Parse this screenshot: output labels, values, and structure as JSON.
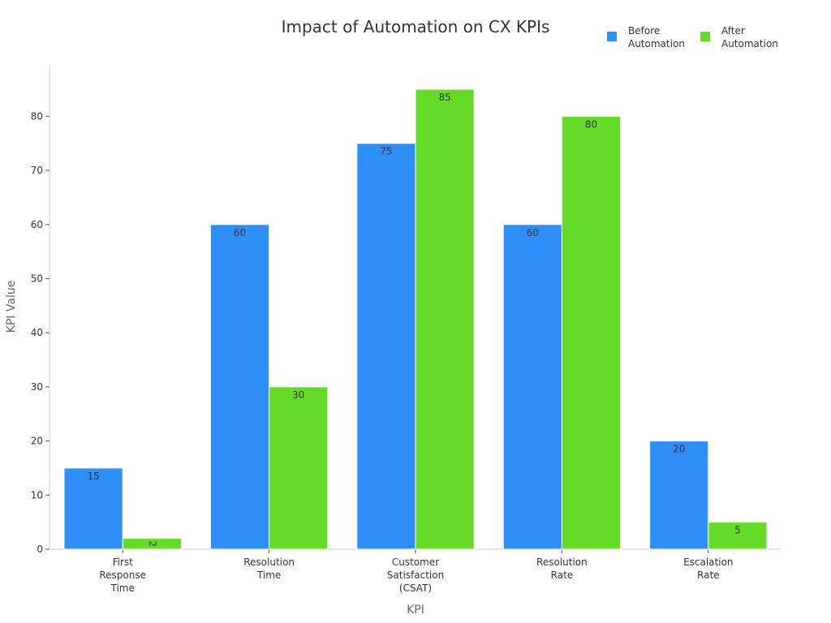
{
  "chart_data": {
    "type": "bar",
    "title": "Impact of Automation on CX KPIs",
    "xlabel": "KPI",
    "ylabel": "KPI Value",
    "categories": [
      [
        "First",
        "Response",
        "Time"
      ],
      [
        "Resolution",
        "Time"
      ],
      [
        "Customer",
        "Satisfaction",
        "(CSAT)"
      ],
      [
        "Resolution",
        "Rate"
      ],
      [
        "Escalation",
        "Rate"
      ]
    ],
    "series": [
      {
        "name": "Before Automation",
        "legend_lines": [
          "Before",
          "Automation"
        ],
        "color": "#2f8ff8",
        "values": [
          15,
          60,
          75,
          60,
          20
        ]
      },
      {
        "name": "After Automation",
        "legend_lines": [
          "After",
          "Automation"
        ],
        "color": "#66db27",
        "values": [
          2,
          30,
          85,
          80,
          5
        ]
      }
    ],
    "ylim": [
      0,
      89.5
    ],
    "yticks": [
      0,
      10,
      20,
      30,
      40,
      50,
      60,
      70,
      80
    ],
    "grid": false,
    "legend_position": "top-right"
  }
}
